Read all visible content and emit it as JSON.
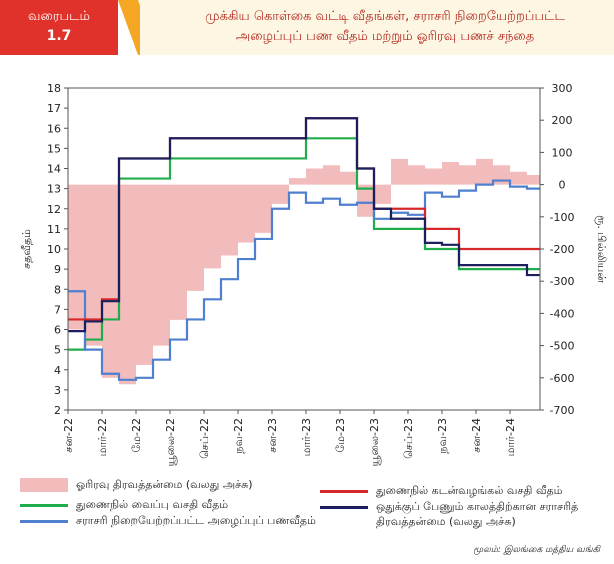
{
  "chart_data": {
    "type": "line",
    "label": {
      "caption": "வரைபடம்",
      "number": "1.7"
    },
    "title": [
      "முக்கிய கொள்கை வட்டி வீதங்கள், சராசரி நிறையேற்றப்பட்ட",
      "அழைப்புப் பண வீதம் மற்றும் ஓரிரவு பணச் சந்தை"
    ],
    "ylabel": "சதவீதம்",
    "y2label": "ரூ. பில்லியன்",
    "source": "மூலம்: இலங்கை மத்திய வங்கி",
    "x": [
      "2022-01",
      "2022-02",
      "2022-03",
      "2022-04",
      "2022-05",
      "2022-06",
      "2022-07",
      "2022-08",
      "2022-09",
      "2022-10",
      "2022-11",
      "2022-12",
      "2023-01",
      "2023-02",
      "2023-03",
      "2023-04",
      "2023-05",
      "2023-06",
      "2023-07",
      "2023-08",
      "2023-09",
      "2023-10",
      "2023-11",
      "2023-12",
      "2024-01",
      "2024-02",
      "2024-03",
      "2024-04"
    ],
    "xticks": [
      {
        "value": "2022-01",
        "label": "சன-22"
      },
      {
        "value": "2022-03",
        "label": "மார்-22"
      },
      {
        "value": "2022-05",
        "label": "மே-22"
      },
      {
        "value": "2022-07",
        "label": "யூலை-22"
      },
      {
        "value": "2022-09",
        "label": "செப்-22"
      },
      {
        "value": "2022-11",
        "label": "நவ-22"
      },
      {
        "value": "2023-01",
        "label": "சன-23"
      },
      {
        "value": "2023-03",
        "label": "மார்-23"
      },
      {
        "value": "2023-05",
        "label": "மே-23"
      },
      {
        "value": "2023-07",
        "label": "யூலை-23"
      },
      {
        "value": "2023-09",
        "label": "செப்-23"
      },
      {
        "value": "2023-11",
        "label": "நவ-23"
      },
      {
        "value": "2024-01",
        "label": "சன-24"
      },
      {
        "value": "2024-03",
        "label": "மார்-24"
      }
    ],
    "ylim": [
      2,
      18
    ],
    "yticks": [
      2,
      3,
      4,
      5,
      6,
      7,
      8,
      9,
      10,
      11,
      12,
      13,
      14,
      15,
      16,
      17,
      18
    ],
    "y2lim": [
      -700,
      300
    ],
    "y2ticks": [
      -700,
      -600,
      -500,
      -400,
      -300,
      -200,
      -100,
      0,
      100,
      200,
      300
    ],
    "series": [
      {
        "name": "ஓரிரவு திரவத்தன்மை (வலது அச்சு)",
        "color": "#f2bcbc",
        "kind": "area",
        "axis": "y2",
        "values": [
          -450,
          -500,
          -600,
          -620,
          -560,
          -500,
          -420,
          -330,
          -260,
          -220,
          -180,
          -150,
          -60,
          20,
          50,
          60,
          40,
          -100,
          -60,
          80,
          60,
          50,
          70,
          60,
          80,
          60,
          40,
          30
        ]
      },
      {
        "name": "துணைநில் வைப்பு வசதி வீதம்",
        "color": "#1fad4b",
        "kind": "line",
        "values": [
          5.0,
          5.5,
          6.5,
          13.5,
          13.5,
          13.5,
          14.5,
          14.5,
          14.5,
          14.5,
          14.5,
          14.5,
          14.5,
          14.5,
          15.5,
          15.5,
          15.5,
          13.0,
          11.0,
          11.0,
          11.0,
          10.0,
          10.0,
          9.0,
          9.0,
          9.0,
          9.0,
          9.0
        ]
      },
      {
        "name": "சராசரி நிறையேற்றப்பட்ட அழைப்புப் பணவீதம்",
        "color": "#4f7fcf",
        "kind": "line",
        "values": [
          7.9,
          5.0,
          3.8,
          3.5,
          3.6,
          4.5,
          5.5,
          6.5,
          7.5,
          8.5,
          9.5,
          10.5,
          12.0,
          12.8,
          12.3,
          12.5,
          12.2,
          12.3,
          11.5,
          11.8,
          11.7,
          12.8,
          12.6,
          12.9,
          13.2,
          13.4,
          13.1,
          13.0
        ]
      },
      {
        "name": "துணைநில் கடன்வழங்கல் வசதி வீதம்",
        "color": "#d62828",
        "kind": "line",
        "values": [
          6.5,
          6.5,
          7.5,
          14.5,
          14.5,
          14.5,
          15.5,
          15.5,
          15.5,
          15.5,
          15.5,
          15.5,
          15.5,
          15.5,
          16.5,
          16.5,
          16.5,
          14.0,
          12.0,
          12.0,
          12.0,
          11.0,
          11.0,
          10.0,
          10.0,
          10.0,
          10.0,
          10.0
        ]
      },
      {
        "name": "ஒதுக்குப் பேணும் காலத்திற்கான சராசரித் திரவத்தன்மை (வலது அச்சு)",
        "color": "#1c1f5e",
        "kind": "line",
        "axis": "y2",
        "values": [
          -455,
          -425,
          -362,
          81,
          81,
          81,
          144,
          144,
          144,
          144,
          144,
          144,
          144,
          144,
          206,
          206,
          206,
          50,
          -75,
          -106,
          -106,
          -181,
          -187,
          -250,
          -250,
          -250,
          -250,
          -281
        ]
      }
    ]
  }
}
